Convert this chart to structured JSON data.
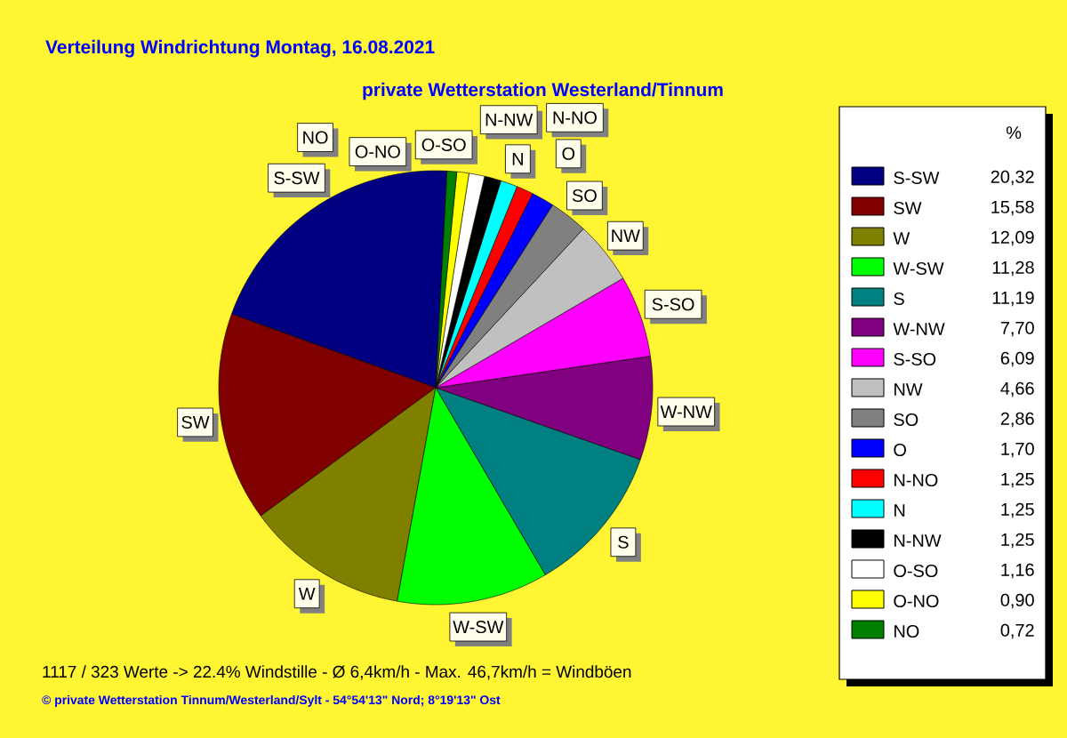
{
  "chart_data": {
    "type": "pie",
    "title": "Verteilung Windrichtung   Montag, 16.08.2021",
    "subtitle": "private Wetterstation Westerland/Tinnum",
    "categories": [
      "S-SW",
      "SW",
      "W",
      "W-SW",
      "S",
      "W-NW",
      "S-SO",
      "NW",
      "SO",
      "O",
      "N-NO",
      "N",
      "N-NW",
      "O-SO",
      "O-NO",
      "NO"
    ],
    "values": [
      20.32,
      15.58,
      12.09,
      11.28,
      11.19,
      7.7,
      6.09,
      4.66,
      2.86,
      1.7,
      1.25,
      1.25,
      1.25,
      1.16,
      0.9,
      0.72
    ],
    "value_labels": [
      "20,32",
      "15,58",
      "12,09",
      "11,28",
      "11,19",
      "7,70",
      "6,09",
      "4,66",
      "2,86",
      "1,70",
      "1,25",
      "1,25",
      "1,25",
      "1,16",
      "0,90",
      "0,72"
    ],
    "colors": [
      "#000080",
      "#800000",
      "#808000",
      "#00ff00",
      "#008080",
      "#800080",
      "#ff00ff",
      "#c0c0c0",
      "#808080",
      "#0000ff",
      "#ff0000",
      "#00ffff",
      "#000000",
      "#ffffff",
      "#ffff00",
      "#008000"
    ],
    "legend_title": "%",
    "legend": "right",
    "annotations": [
      "1117 / 323 Werte  -> 22.4% Windstille   -   Ø 6,4km/h  -  Max. 46,7km/h = Windböen",
      "© private Wetterstation Tinnum/Westerland/Sylt   -   54°54'13\" Nord; 8°19'13\" Ost"
    ]
  }
}
